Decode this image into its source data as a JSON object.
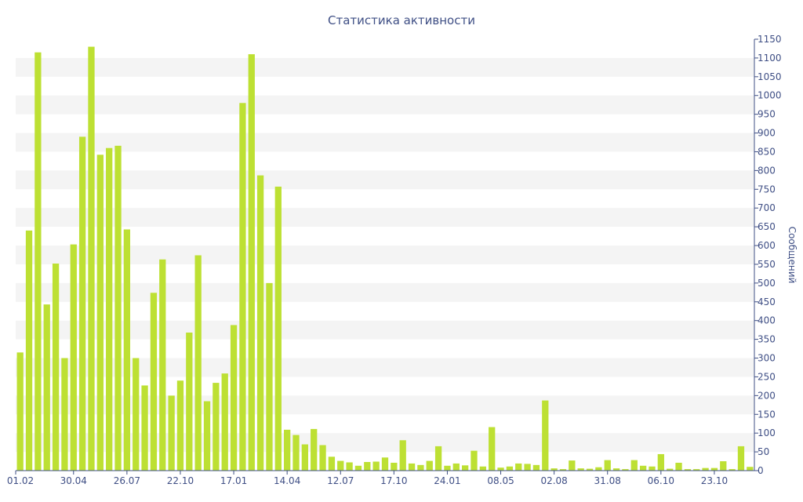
{
  "chart_data": {
    "type": "bar",
    "title": "Статистика активности",
    "ylabel": "Сообщений",
    "xlabel": "",
    "ylim": [
      0,
      1150
    ],
    "ytick_step": 50,
    "y_axis_side": "right",
    "grid": "alternating horizontal bands",
    "x_tick_labels": [
      "01.02",
      "30.04",
      "26.07",
      "22.10",
      "17.01",
      "14.04",
      "12.07",
      "17.10",
      "24.01",
      "08.05",
      "02.08",
      "31.08",
      "06.10",
      "23.10"
    ],
    "x_tick_label_positions": [
      0,
      6,
      12,
      18,
      24,
      30,
      36,
      42,
      48,
      54,
      60,
      66,
      72,
      78
    ],
    "values": [
      315,
      640,
      1115,
      443,
      552,
      300,
      603,
      890,
      1130,
      842,
      860,
      866,
      643,
      300,
      227,
      474,
      563,
      200,
      240,
      368,
      574,
      185,
      234,
      259,
      388,
      980,
      1110,
      787,
      500,
      757,
      109,
      95,
      70,
      111,
      68,
      37,
      26,
      22,
      13,
      23,
      24,
      35,
      21,
      81,
      19,
      15,
      26,
      65,
      13,
      19,
      14,
      53,
      11,
      116,
      8,
      11,
      19,
      18,
      15,
      187,
      6,
      4,
      27,
      6,
      5,
      9,
      28,
      6,
      4,
      28,
      13,
      11,
      44,
      5,
      21,
      4,
      4,
      7,
      7,
      25,
      4,
      65,
      10
    ],
    "colors": {
      "bar": "#bde033",
      "band": "#f4f4f4",
      "text": "#3f4f85",
      "axis": "#3f4f85"
    }
  }
}
